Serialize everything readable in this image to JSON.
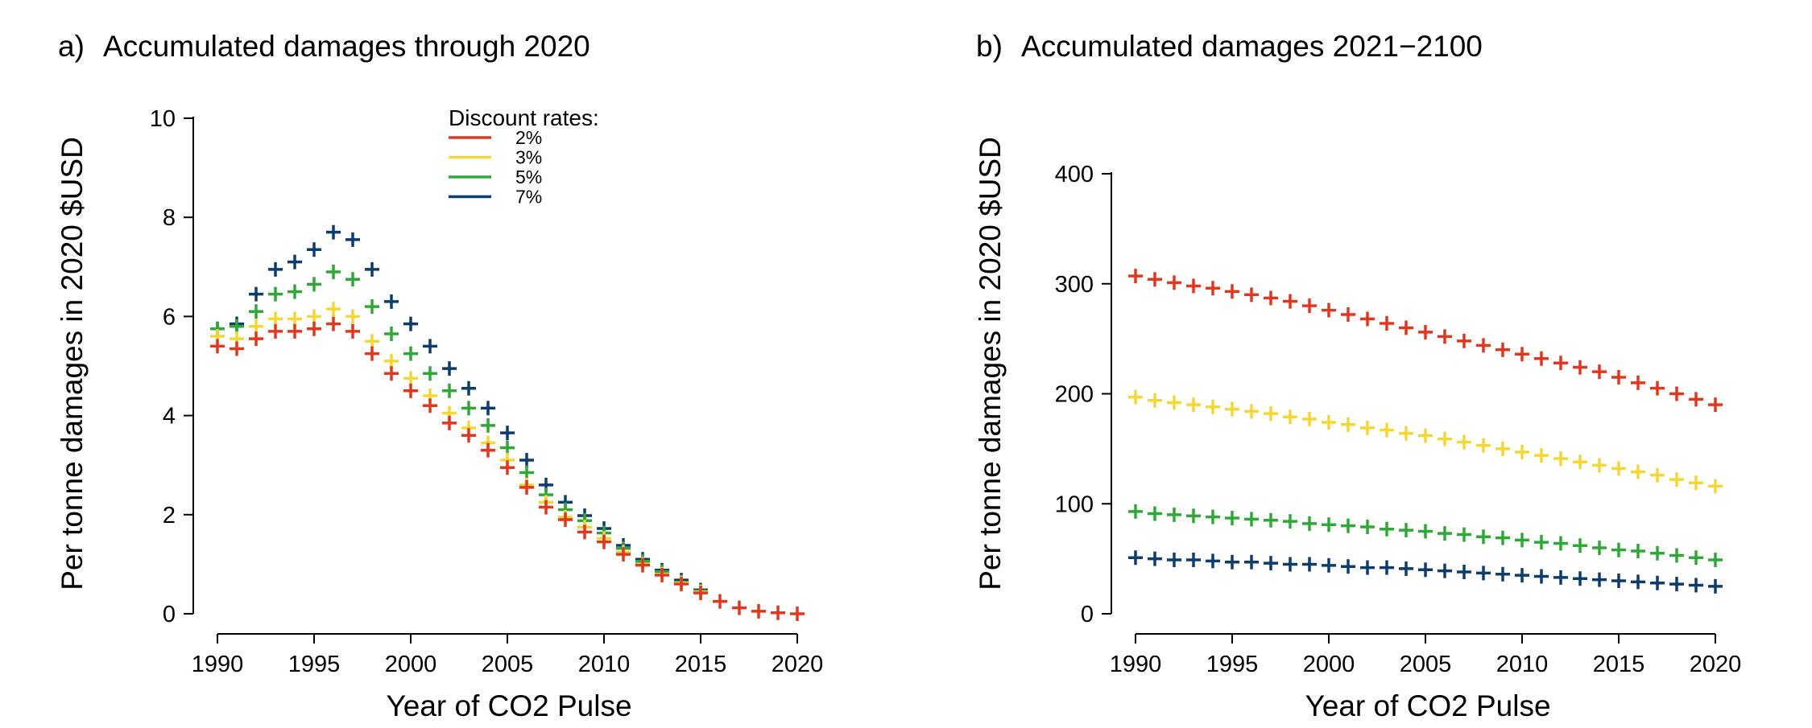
{
  "chart_data": [
    {
      "type": "scatter",
      "panel": "a)",
      "title": "Accumulated damages through 2020",
      "xlabel": "Year of CO2 Pulse",
      "ylabel": "Per tonne damages in 2020 $USD",
      "xlim": [
        1990,
        2020
      ],
      "ylim": [
        0,
        10
      ],
      "xticks": [
        1990,
        1995,
        2000,
        2005,
        2010,
        2015,
        2020
      ],
      "yticks": [
        0,
        2,
        4,
        6,
        8,
        10
      ],
      "marker": "plus",
      "grid": false,
      "legend": {
        "title": "Discount rates:",
        "position": "top-center",
        "entries": [
          "2%",
          "3%",
          "5%",
          "7%"
        ]
      },
      "x": [
        1990,
        1991,
        1992,
        1993,
        1994,
        1995,
        1996,
        1997,
        1998,
        1999,
        2000,
        2001,
        2002,
        2003,
        2004,
        2005,
        2006,
        2007,
        2008,
        2009,
        2010,
        2011,
        2012,
        2013,
        2014,
        2015,
        2016,
        2017,
        2018,
        2019,
        2020
      ],
      "series": [
        {
          "name": "7%",
          "color": "#0d3c6e",
          "values": [
            5.75,
            5.85,
            6.45,
            6.95,
            7.1,
            7.35,
            7.7,
            7.55,
            6.95,
            6.3,
            5.85,
            5.4,
            4.95,
            4.55,
            4.15,
            3.65,
            3.1,
            2.6,
            2.25,
            1.98,
            1.72,
            1.38,
            1.1,
            0.88,
            0.68,
            0.48,
            null,
            null,
            null,
            null,
            null
          ]
        },
        {
          "name": "5%",
          "color": "#2ea836",
          "values": [
            5.75,
            5.8,
            6.1,
            6.45,
            6.5,
            6.65,
            6.9,
            6.75,
            6.2,
            5.65,
            5.25,
            4.85,
            4.5,
            4.15,
            3.8,
            3.35,
            2.85,
            2.4,
            2.1,
            1.88,
            1.63,
            1.32,
            1.06,
            0.85,
            0.64,
            0.46,
            null,
            null,
            null,
            null,
            null
          ]
        },
        {
          "name": "3%",
          "color": "#f5d731",
          "values": [
            5.6,
            5.55,
            5.8,
            5.95,
            5.95,
            6.0,
            6.15,
            6.0,
            5.5,
            5.1,
            4.75,
            4.4,
            4.05,
            3.75,
            3.45,
            3.1,
            2.6,
            2.25,
            1.95,
            1.75,
            1.52,
            1.24,
            1.0,
            0.8,
            0.62,
            0.44,
            null,
            null,
            null,
            null,
            null
          ]
        },
        {
          "name": "2%",
          "color": "#e2361e",
          "values": [
            5.4,
            5.35,
            5.55,
            5.7,
            5.7,
            5.75,
            5.85,
            5.7,
            5.25,
            4.85,
            4.5,
            4.2,
            3.85,
            3.6,
            3.3,
            2.95,
            2.55,
            2.15,
            1.9,
            1.65,
            1.45,
            1.2,
            0.98,
            0.78,
            0.6,
            0.42,
            0.25,
            0.12,
            0.05,
            0.02,
            0.0
          ]
        }
      ]
    },
    {
      "type": "scatter",
      "panel": "b)",
      "title": "Accumulated damages 2021−2100",
      "xlabel": "Year of CO2 Pulse",
      "ylabel": "Per tonne damages in 2020 $USD",
      "xlim": [
        1990,
        2020
      ],
      "ylim": [
        0,
        400
      ],
      "xticks": [
        1990,
        1995,
        2000,
        2005,
        2010,
        2015,
        2020
      ],
      "yticks": [
        0,
        100,
        200,
        300,
        400
      ],
      "marker": "plus",
      "grid": false,
      "x": [
        1990,
        1991,
        1992,
        1993,
        1994,
        1995,
        1996,
        1997,
        1998,
        1999,
        2000,
        2001,
        2002,
        2003,
        2004,
        2005,
        2006,
        2007,
        2008,
        2009,
        2010,
        2011,
        2012,
        2013,
        2014,
        2015,
        2016,
        2017,
        2018,
        2019,
        2020
      ],
      "series": [
        {
          "name": "2%",
          "color": "#e2361e",
          "values": [
            307,
            304,
            301,
            298,
            296,
            293,
            290,
            287,
            284,
            280,
            276,
            272,
            268,
            264,
            260,
            256,
            252,
            248,
            244,
            240,
            236,
            232,
            228,
            224,
            220,
            215,
            210,
            205,
            200,
            195,
            190
          ]
        },
        {
          "name": "3%",
          "color": "#f5d731",
          "values": [
            197,
            194,
            192,
            190,
            188,
            186,
            184,
            182,
            179,
            177,
            174,
            172,
            169,
            167,
            164,
            162,
            159,
            156,
            153,
            150,
            147,
            144,
            141,
            138,
            135,
            132,
            129,
            126,
            122,
            119,
            116
          ]
        },
        {
          "name": "5%",
          "color": "#2ea836",
          "values": [
            93,
            91,
            90,
            89,
            88,
            87,
            86,
            85,
            84,
            82,
            81,
            80,
            79,
            77,
            76,
            75,
            73,
            72,
            70,
            69,
            67,
            65,
            64,
            62,
            60,
            58,
            57,
            55,
            53,
            51,
            49
          ]
        },
        {
          "name": "7%",
          "color": "#0d3c6e",
          "values": [
            51,
            50,
            49,
            49,
            48,
            47,
            47,
            46,
            45,
            45,
            44,
            43,
            42,
            42,
            41,
            40,
            39,
            38,
            37,
            36,
            35,
            34,
            33,
            32,
            31,
            30,
            29,
            28,
            27,
            26,
            25
          ]
        }
      ]
    }
  ]
}
